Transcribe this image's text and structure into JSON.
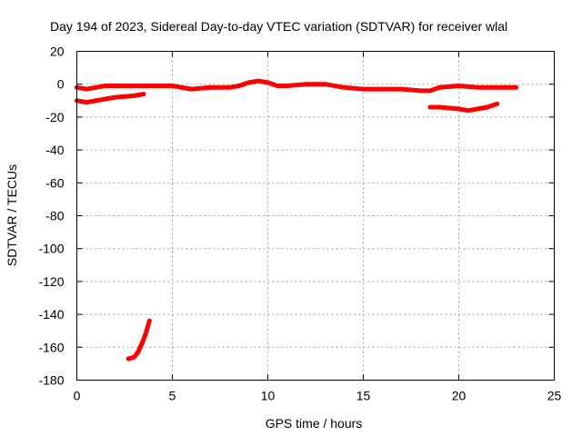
{
  "chart_data": {
    "type": "line",
    "title": "Day 194 of 2023, Sidereal Day-to-day VTEC variation (SDTVAR) for receiver wlal",
    "xlabel": "GPS time / hours",
    "ylabel": "SDTVAR / TECUs",
    "xlim": [
      0,
      25
    ],
    "ylim": [
      -180,
      20
    ],
    "xticks": [
      "0",
      "5",
      "10",
      "15",
      "20",
      "25"
    ],
    "yticks": [
      "20",
      "0",
      "-20",
      "-40",
      "-60",
      "-80",
      "-100",
      "-120",
      "-140",
      "-160",
      "-180"
    ],
    "grid": true,
    "legend": "none",
    "color": "#ff0000",
    "series": [
      {
        "x": [
          0.0,
          0.5,
          1.0,
          1.5,
          2.0,
          2.5,
          3.0,
          4.0,
          5.0,
          6.0,
          7.0,
          8.0,
          8.5,
          9.0,
          9.5,
          10.0,
          10.5,
          11.0,
          12.0,
          13.0,
          14.0,
          15.0,
          16.0,
          17.0,
          18.0,
          18.5,
          19.0,
          20.0,
          21.0,
          22.0,
          23.0
        ],
        "y": [
          -2,
          -3,
          -2,
          -1,
          -1,
          -1,
          -1,
          -1,
          -1,
          -3,
          -2,
          -2,
          -1,
          1,
          2,
          1,
          -1,
          -1,
          0,
          0,
          -2,
          -3,
          -3,
          -3,
          -4,
          -4,
          -2,
          -1,
          -2,
          -2,
          -2
        ]
      },
      {
        "x": [
          0.0,
          0.5,
          1.0,
          1.5,
          2.0,
          3.0,
          3.5
        ],
        "y": [
          -10,
          -11,
          -10,
          -9,
          -8,
          -7,
          -6
        ]
      },
      {
        "x": [
          18.5,
          19.0,
          20.0,
          20.5,
          21.0,
          21.5,
          22.0
        ],
        "y": [
          -14,
          -14,
          -15,
          -16,
          -15,
          -14,
          -12
        ]
      },
      {
        "x": [
          2.7,
          3.0,
          3.2,
          3.4,
          3.6,
          3.8
        ],
        "y": [
          -167,
          -166,
          -163,
          -158,
          -152,
          -144
        ]
      }
    ]
  }
}
